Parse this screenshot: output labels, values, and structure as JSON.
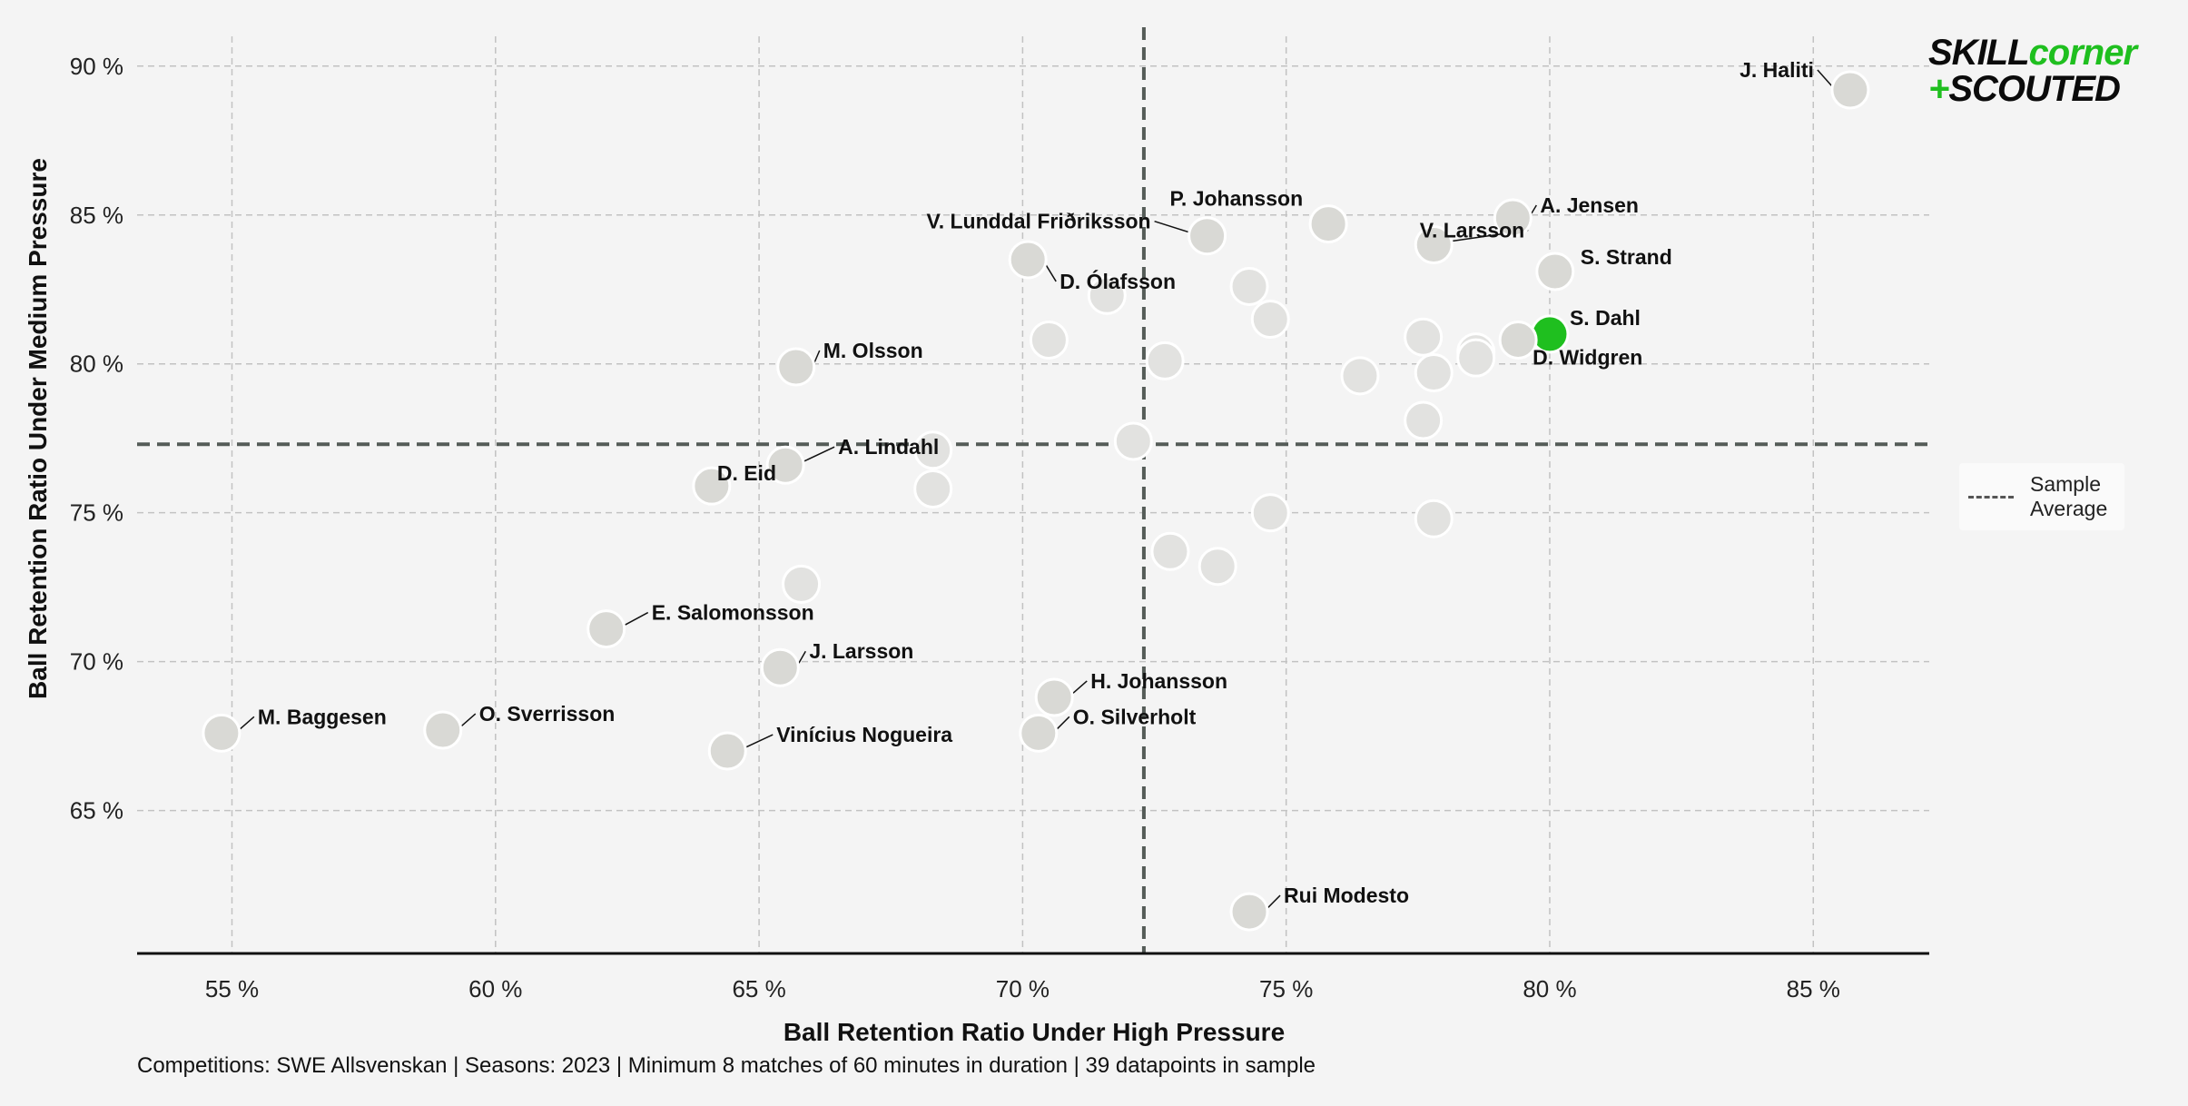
{
  "chart_data": {
    "type": "scatter",
    "xlabel": "Ball Retention Ratio Under High Pressure",
    "ylabel": "Ball Retention Ratio Under Medium Pressure",
    "xlim": [
      53.2,
      87.2
    ],
    "ylim": [
      60.2,
      91.0
    ],
    "xticks": [
      55,
      60,
      65,
      70,
      75,
      80,
      85
    ],
    "yticks": [
      65,
      70,
      75,
      80,
      85,
      90
    ],
    "tick_suffix": " %",
    "grid": true,
    "legend_position": "right",
    "legend_label": "Sample\nAverage",
    "averages": {
      "x": 72.3,
      "y": 77.3
    },
    "highlight_color": "#1fbf1f",
    "point_color": "#d9d9d5",
    "faded_point_color": "#e2e2e0",
    "points": [
      {
        "name": "J. Haliti",
        "x": 85.7,
        "y": 89.2
      },
      {
        "name": "A. Jensen",
        "x": 79.3,
        "y": 84.9
      },
      {
        "name": "P. Johansson",
        "x": 75.8,
        "y": 84.7
      },
      {
        "name": "V. Lunddal Friðriksson",
        "x": 73.5,
        "y": 84.3
      },
      {
        "name": "V. Larsson",
        "x": 77.8,
        "y": 84.0
      },
      {
        "name": "D. Ólafsson",
        "x": 70.1,
        "y": 83.5
      },
      {
        "name": "S. Strand",
        "x": 80.1,
        "y": 83.1
      },
      {
        "name": "S. Dahl",
        "x": 80.0,
        "y": 81.0,
        "highlight": true
      },
      {
        "name": "D. Widgren",
        "x": 79.4,
        "y": 80.8
      },
      {
        "name": "M. Olsson",
        "x": 65.7,
        "y": 79.9
      },
      {
        "name": "A. Lindahl",
        "x": 65.5,
        "y": 76.6
      },
      {
        "name": "D. Eid",
        "x": 64.1,
        "y": 75.9
      },
      {
        "name": "E. Salomonsson",
        "x": 62.1,
        "y": 71.1
      },
      {
        "name": "J. Larsson",
        "x": 65.4,
        "y": 69.8
      },
      {
        "name": "H. Johansson",
        "x": 70.6,
        "y": 68.8
      },
      {
        "name": "O. Silverholt",
        "x": 70.3,
        "y": 67.6
      },
      {
        "name": "M. Baggesen",
        "x": 54.8,
        "y": 67.6
      },
      {
        "name": "O. Sverrisson",
        "x": 59.0,
        "y": 67.7
      },
      {
        "name": "Vinícius Nogueira",
        "x": 64.4,
        "y": 67.0
      },
      {
        "name": "Rui Modesto",
        "x": 74.3,
        "y": 61.6
      },
      {
        "x": 71.6,
        "y": 82.3,
        "faded": true
      },
      {
        "x": 74.3,
        "y": 82.6,
        "faded": true
      },
      {
        "x": 74.7,
        "y": 81.5,
        "faded": true
      },
      {
        "x": 70.5,
        "y": 80.8,
        "faded": true
      },
      {
        "x": 72.7,
        "y": 80.1,
        "faded": true
      },
      {
        "x": 77.6,
        "y": 80.9,
        "faded": true
      },
      {
        "x": 78.6,
        "y": 80.4,
        "faded": true
      },
      {
        "x": 78.6,
        "y": 80.2,
        "faded": true
      },
      {
        "x": 76.4,
        "y": 79.6,
        "faded": true
      },
      {
        "x": 77.8,
        "y": 79.7,
        "faded": true
      },
      {
        "x": 77.6,
        "y": 78.1,
        "faded": true
      },
      {
        "x": 72.1,
        "y": 77.4,
        "faded": true
      },
      {
        "x": 68.3,
        "y": 77.1,
        "faded": true
      },
      {
        "x": 68.3,
        "y": 75.8,
        "faded": true
      },
      {
        "x": 74.7,
        "y": 75.0,
        "faded": true
      },
      {
        "x": 77.8,
        "y": 74.8,
        "faded": true
      },
      {
        "x": 72.8,
        "y": 73.7,
        "faded": true
      },
      {
        "x": 73.7,
        "y": 73.2,
        "faded": true
      },
      {
        "x": 65.8,
        "y": 72.6,
        "faded": true
      }
    ]
  },
  "footnote": "Competitions: SWE Allsvenskan | Seasons: 2023 | Minimum 8 matches of 60 minutes in duration | 39 datapoints in sample",
  "legend": {
    "label_line1": "Sample",
    "label_line2": "Average"
  },
  "logo": {
    "top_a": "SKILL",
    "top_b": "corner",
    "plus": "+",
    "bottom": "SCOUTED"
  }
}
